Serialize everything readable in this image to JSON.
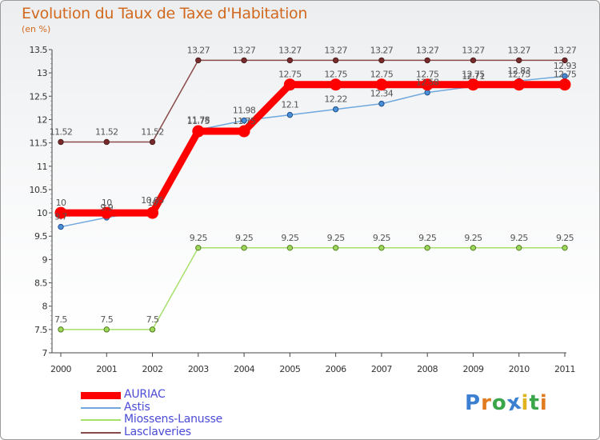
{
  "header": {
    "title": "Evolution du Taux de Taxe d'Habitation",
    "subtitle": "(en %)"
  },
  "chart_data": {
    "type": "line",
    "title": "Evolution du Taux de Taxe d'Habitation",
    "ylabel": "(en %)",
    "xlabel": "",
    "categories": [
      "2000",
      "2001",
      "2002",
      "2003",
      "2004",
      "2005",
      "2006",
      "2007",
      "2008",
      "2009",
      "2010",
      "2011"
    ],
    "ylim": [
      7,
      13.5
    ],
    "yticks": [
      "7",
      "7.5",
      "8",
      "8.5",
      "9",
      "9.5",
      "10",
      "10.5",
      "11",
      "11.5",
      "12",
      "12.5",
      "13",
      "13.5"
    ],
    "grid": false,
    "legend_position": "bottom-left",
    "series": [
      {
        "name": "AURIAC",
        "color": "#ff0000",
        "values": [
          10,
          10,
          10,
          11.75,
          11.75,
          12.75,
          12.75,
          12.75,
          12.75,
          12.75,
          12.75,
          12.75
        ]
      },
      {
        "name": "Astis",
        "color": "#6fa8dc",
        "values": [
          9.7,
          9.9,
          10.05,
          11.78,
          11.98,
          12.1,
          12.22,
          12.34,
          12.58,
          12.71,
          12.83,
          12.93
        ]
      },
      {
        "name": "Miossens-Lanusse",
        "color": "#a6e06a",
        "values": [
          7.5,
          7.5,
          7.5,
          9.25,
          9.25,
          9.25,
          9.25,
          9.25,
          9.25,
          9.25,
          9.25,
          9.25
        ]
      },
      {
        "name": "Lasclaveries",
        "color": "#8b4a4a",
        "values": [
          11.52,
          11.52,
          11.52,
          13.27,
          13.27,
          13.27,
          13.27,
          13.27,
          13.27,
          13.27,
          13.27,
          13.27
        ]
      }
    ]
  },
  "brand": {
    "letters": [
      "P",
      "r",
      "o",
      "x",
      "i",
      "t",
      "i"
    ],
    "colors": [
      "#3a7fd0",
      "#e07b1f",
      "#3aa64a",
      "#3a7fd0",
      "#e0b41f",
      "#3aa64a",
      "#e07b1f"
    ]
  }
}
